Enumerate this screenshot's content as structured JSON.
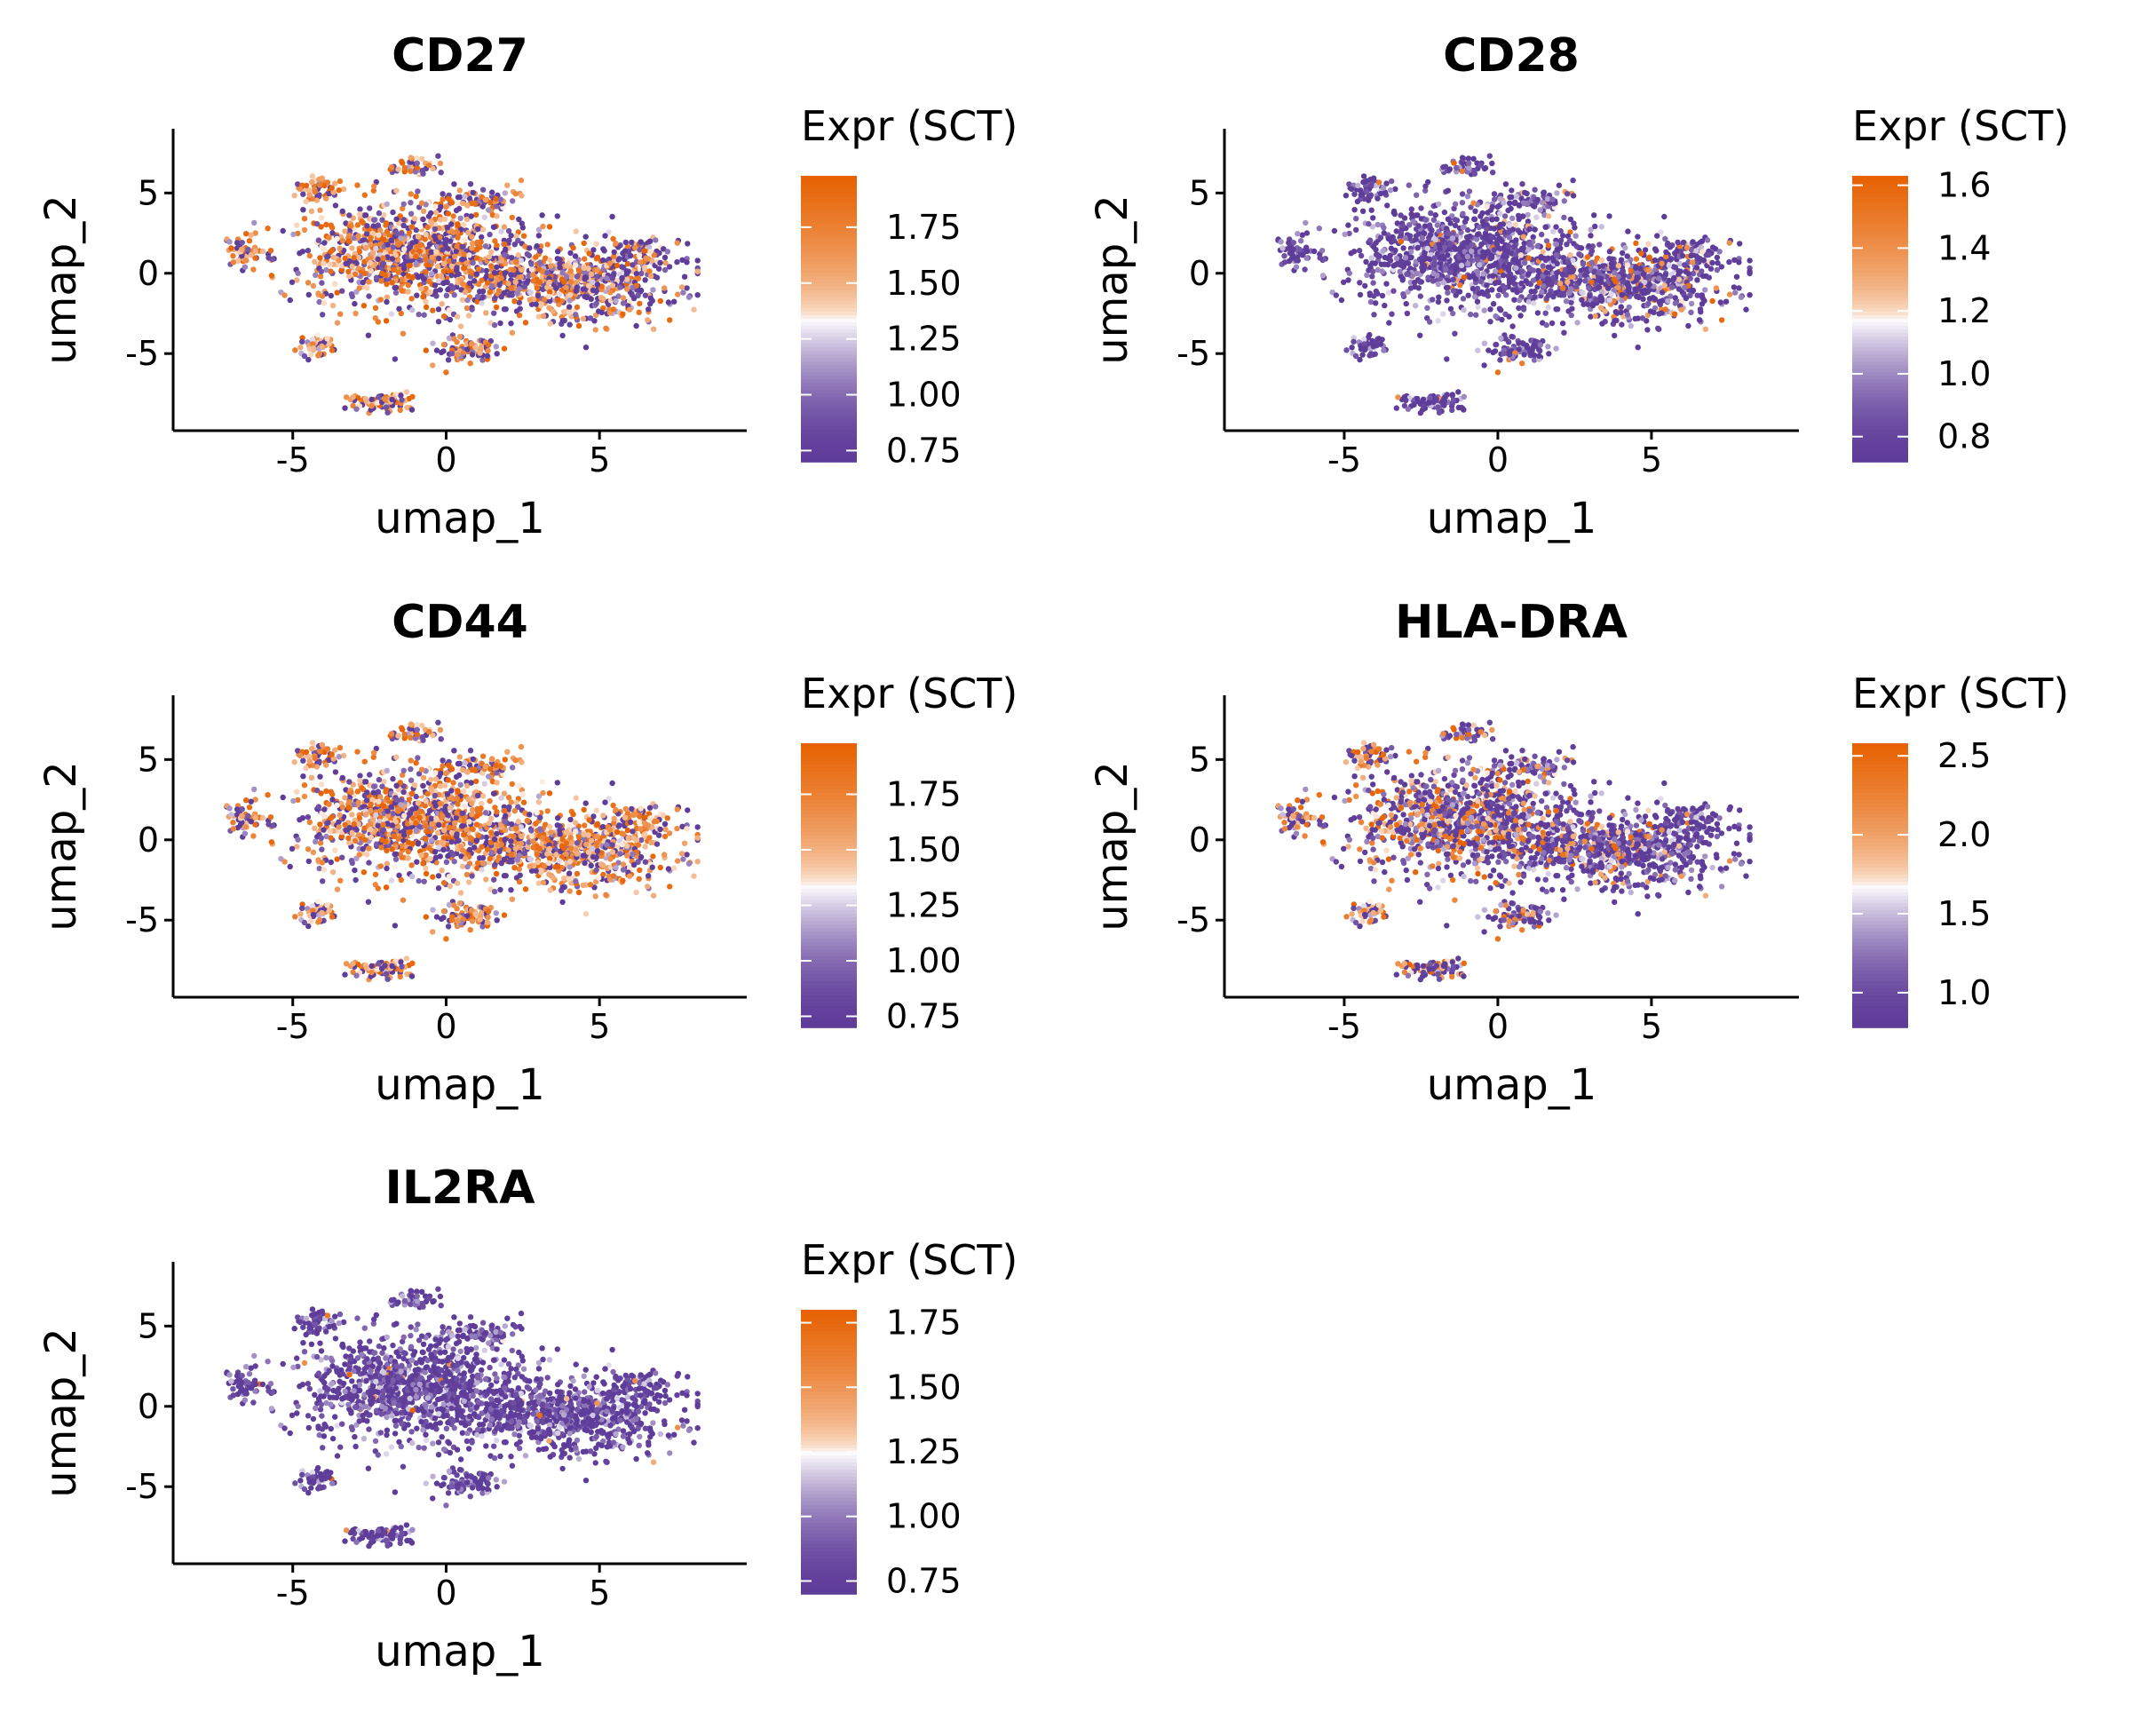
{
  "chart_data": [
    {
      "type": "scatter",
      "title": "CD27",
      "xlabel": "umap_1",
      "ylabel": "umap_2",
      "xlim": [
        -8.9,
        9.8
      ],
      "ylim": [
        -9.8,
        9.0
      ],
      "xticks": [
        -5,
        0,
        5
      ],
      "yticks": [
        5,
        0,
        -5
      ],
      "xtick_labels": [
        "-5",
        "0",
        "5"
      ],
      "ytick_labels": [
        "5",
        "0",
        "-5"
      ],
      "legend": {
        "title": "Expr (SCT)",
        "min": 0.7,
        "max": 1.98,
        "ticks": [
          1.75,
          1.5,
          1.25,
          1.0,
          0.75
        ],
        "tick_labels": [
          "1.75",
          "1.50",
          "1.25",
          "1.00",
          "0.75"
        ]
      },
      "colors": {
        "low": "#5E3C99",
        "mid": "#FFFFFF",
        "high": "#E66101"
      },
      "expression_profile": {
        "high_fraction": 0.55,
        "right_bias": -0.6
      }
    },
    {
      "type": "scatter",
      "title": "CD28",
      "xlabel": "umap_1",
      "ylabel": "umap_2",
      "xlim": [
        -8.9,
        9.8
      ],
      "ylim": [
        -9.8,
        9.0
      ],
      "xticks": [
        -5,
        0,
        5
      ],
      "yticks": [
        5,
        0,
        -5
      ],
      "xtick_labels": [
        "-5",
        "0",
        "5"
      ],
      "ytick_labels": [
        "5",
        "0",
        "-5"
      ],
      "legend": {
        "title": "Expr (SCT)",
        "min": 0.72,
        "max": 1.63,
        "ticks": [
          1.6,
          1.4,
          1.2,
          1.0,
          0.8
        ],
        "tick_labels": [
          "1.6",
          "1.4",
          "1.2",
          "1.0",
          "0.8"
        ]
      },
      "colors": {
        "low": "#5E3C99",
        "mid": "#FFFFFF",
        "high": "#E66101"
      },
      "expression_profile": {
        "high_fraction": 0.08,
        "right_bias": 0.5
      }
    },
    {
      "type": "scatter",
      "title": "CD44",
      "xlabel": "umap_1",
      "ylabel": "umap_2",
      "xlim": [
        -8.9,
        9.8
      ],
      "ylim": [
        -9.8,
        9.0
      ],
      "xticks": [
        -5,
        0,
        5
      ],
      "yticks": [
        5,
        0,
        -5
      ],
      "xtick_labels": [
        "-5",
        "0",
        "5"
      ],
      "ytick_labels": [
        "5",
        "0",
        "-5"
      ],
      "legend": {
        "title": "Expr (SCT)",
        "min": 0.7,
        "max": 1.98,
        "ticks": [
          1.75,
          1.5,
          1.25,
          1.0,
          0.75
        ],
        "tick_labels": [
          "1.75",
          "1.50",
          "1.25",
          "1.00",
          "0.75"
        ]
      },
      "colors": {
        "low": "#5E3C99",
        "mid": "#FFFFFF",
        "high": "#E66101"
      },
      "expression_profile": {
        "high_fraction": 0.6,
        "right_bias": 0.2
      }
    },
    {
      "type": "scatter",
      "title": "HLA-DRA",
      "xlabel": "umap_1",
      "ylabel": "umap_2",
      "xlim": [
        -8.9,
        9.8
      ],
      "ylim": [
        -9.8,
        9.0
      ],
      "xticks": [
        -5,
        0,
        5
      ],
      "yticks": [
        5,
        0,
        -5
      ],
      "xtick_labels": [
        "-5",
        "0",
        "5"
      ],
      "ytick_labels": [
        "5",
        "0",
        "-5"
      ],
      "legend": {
        "title": "Expr (SCT)",
        "min": 0.78,
        "max": 2.58,
        "ticks": [
          2.5,
          2.0,
          1.5,
          1.0
        ],
        "tick_labels": [
          "2.5",
          "2.0",
          "1.5",
          "1.0"
        ]
      },
      "colors": {
        "low": "#5E3C99",
        "mid": "#FFFFFF",
        "high": "#E66101"
      },
      "expression_profile": {
        "high_fraction": 0.3,
        "right_bias": -1.0
      }
    },
    {
      "type": "scatter",
      "title": "IL2RA",
      "xlabel": "umap_1",
      "ylabel": "umap_2",
      "xlim": [
        -8.9,
        9.8
      ],
      "ylim": [
        -9.8,
        9.0
      ],
      "xticks": [
        -5,
        0,
        5
      ],
      "yticks": [
        5,
        0,
        -5
      ],
      "xtick_labels": [
        "-5",
        "0",
        "5"
      ],
      "ytick_labels": [
        "5",
        "0",
        "-5"
      ],
      "legend": {
        "title": "Expr (SCT)",
        "min": 0.7,
        "max": 1.8,
        "ticks": [
          1.75,
          1.5,
          1.25,
          1.0,
          0.75
        ],
        "tick_labels": [
          "1.75",
          "1.50",
          "1.25",
          "1.00",
          "0.75"
        ]
      },
      "colors": {
        "low": "#5E3C99",
        "mid": "#FFFFFF",
        "high": "#E66101"
      },
      "expression_profile": {
        "high_fraction": 0.02,
        "right_bias": 0.0
      }
    }
  ],
  "clusters": [
    {
      "cx": -1.0,
      "cy": 1.2,
      "rx": 4.2,
      "ry": 3.6,
      "weight": 0.45
    },
    {
      "cx": 4.2,
      "cy": -0.6,
      "rx": 3.9,
      "ry": 2.6,
      "weight": 0.27
    },
    {
      "cx": -6.6,
      "cy": 1.2,
      "rx": 0.6,
      "ry": 1.1,
      "weight": 0.025
    },
    {
      "cx": -4.2,
      "cy": 5.3,
      "rx": 0.8,
      "ry": 0.7,
      "weight": 0.02
    },
    {
      "cx": -1.0,
      "cy": 6.6,
      "rx": 0.9,
      "ry": 0.6,
      "weight": 0.02
    },
    {
      "cx": -4.2,
      "cy": -4.6,
      "rx": 0.7,
      "ry": 0.9,
      "weight": 0.025
    },
    {
      "cx": 0.6,
      "cy": -4.8,
      "rx": 1.1,
      "ry": 1.0,
      "weight": 0.04
    },
    {
      "cx": -2.1,
      "cy": -8.0,
      "rx": 1.3,
      "ry": 0.7,
      "weight": 0.035
    },
    {
      "cx": 1.2,
      "cy": 4.5,
      "rx": 1.5,
      "ry": 0.8,
      "weight": 0.035
    },
    {
      "cx": 6.3,
      "cy": 1.5,
      "rx": 1.2,
      "ry": 1.0,
      "weight": 0.025
    }
  ],
  "points_per_panel": 2200
}
